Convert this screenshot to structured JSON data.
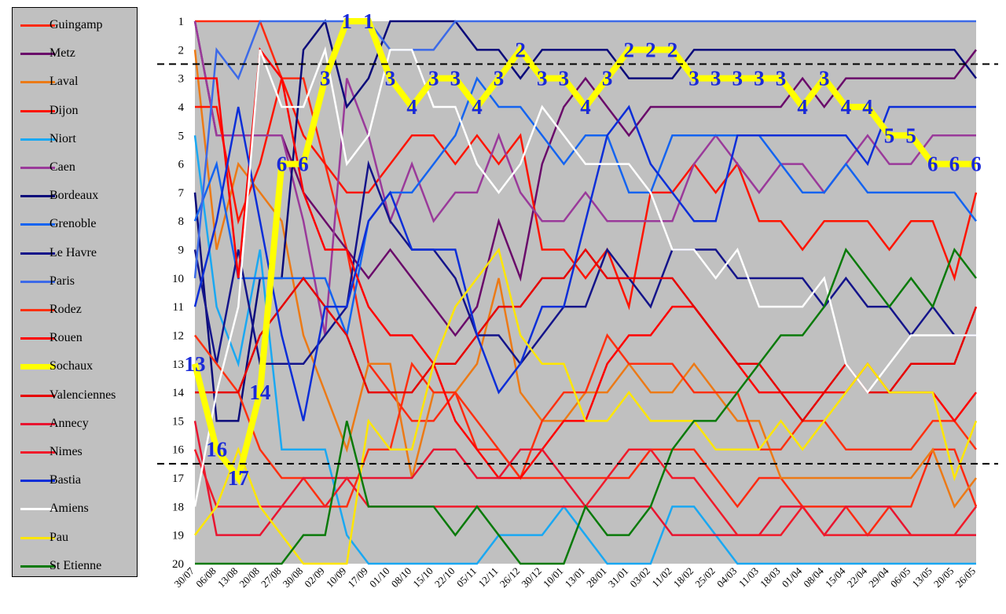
{
  "chart_data": {
    "type": "line",
    "title": "",
    "xlabel": "",
    "ylabel": "",
    "ylim": [
      20,
      1
    ],
    "y_inverted": true,
    "yticks": [
      1,
      2,
      3,
      4,
      5,
      6,
      7,
      8,
      9,
      10,
      11,
      12,
      13,
      14,
      15,
      16,
      17,
      18,
      19,
      20
    ],
    "grid": false,
    "legend_position": "left",
    "background": "#c0c0c0",
    "x": [
      "30/07",
      "06/08",
      "13/08",
      "20/08",
      "27/08",
      "30/08",
      "02/09",
      "10/09",
      "17/09",
      "01/10",
      "08/10",
      "15/10",
      "22/10",
      "05/11",
      "12/11",
      "26/12",
      "30/12",
      "10/01",
      "13/01",
      "28/01",
      "31/01",
      "03/02",
      "11/02",
      "18/02",
      "25/02",
      "04/03",
      "11/03",
      "18/03",
      "01/04",
      "08/04",
      "15/04",
      "22/04",
      "29/04",
      "06/05",
      "13/05",
      "20/05",
      "26/05"
    ],
    "reference_lines": [
      2.5,
      16.5
    ],
    "series": [
      {
        "name": "Guingamp",
        "color": "#ff2a10",
        "width": 2.5,
        "values": [
          1,
          1,
          1,
          1,
          3,
          3,
          6,
          9,
          13,
          14,
          15,
          15,
          14,
          16,
          16,
          17,
          17,
          17,
          17,
          17,
          17,
          16,
          16,
          16,
          17,
          18,
          17,
          17,
          18,
          18,
          18,
          19,
          18,
          18,
          16,
          16,
          18
        ]
      },
      {
        "name": "Metz",
        "color": "#6a0a6a",
        "width": 2.5,
        "values": [
          1,
          5,
          5,
          5,
          5,
          7,
          8,
          9,
          10,
          9,
          10,
          11,
          12,
          11,
          8,
          10,
          6,
          4,
          3,
          4,
          5,
          4,
          4,
          4,
          4,
          4,
          4,
          4,
          3,
          4,
          3,
          3,
          3,
          3,
          3,
          3,
          2
        ]
      },
      {
        "name": "Laval",
        "color": "#ec7a16",
        "width": 2.5,
        "values": [
          2,
          9,
          6,
          7,
          8,
          12,
          14,
          16,
          13,
          13,
          17,
          14,
          14,
          13,
          10,
          14,
          15,
          15,
          14,
          14,
          13,
          14,
          14,
          13,
          14,
          15,
          15,
          17,
          17,
          17,
          17,
          17,
          17,
          17,
          16,
          18,
          17
        ]
      },
      {
        "name": "Dijon",
        "color": "#ff1400",
        "width": 2.5,
        "values": [
          4,
          4,
          8,
          6,
          3,
          5,
          6,
          7,
          7,
          6,
          5,
          5,
          6,
          5,
          6,
          5,
          9,
          9,
          10,
          9,
          11,
          7,
          7,
          6,
          7,
          6,
          8,
          8,
          9,
          8,
          8,
          8,
          9,
          8,
          8,
          10,
          7
        ]
      },
      {
        "name": "Niort",
        "color": "#1aa8f2",
        "width": 2.5,
        "values": [
          5,
          11,
          13,
          9,
          16,
          16,
          16,
          19,
          20,
          20,
          20,
          20,
          20,
          20,
          19,
          19,
          19,
          18,
          19,
          20,
          20,
          20,
          18,
          18,
          19,
          20,
          20,
          20,
          20,
          20,
          20,
          20,
          20,
          20,
          20,
          20,
          20
        ]
      },
      {
        "name": "Caen",
        "color": "#9a3a9a",
        "width": 2.5,
        "values": [
          1,
          5,
          5,
          5,
          5,
          8,
          12,
          3,
          5,
          8,
          6,
          8,
          7,
          7,
          5,
          7,
          8,
          8,
          7,
          8,
          8,
          8,
          8,
          6,
          5,
          6,
          7,
          6,
          6,
          7,
          6,
          5,
          6,
          6,
          5,
          5,
          5
        ]
      },
      {
        "name": "Bordeaux",
        "color": "#0a0a7a",
        "width": 2.5,
        "values": [
          7,
          15,
          15,
          10,
          10,
          2,
          1,
          4,
          3,
          1,
          1,
          1,
          1,
          2,
          2,
          3,
          2,
          2,
          2,
          2,
          3,
          3,
          3,
          2,
          2,
          2,
          2,
          2,
          2,
          2,
          2,
          2,
          2,
          2,
          2,
          2,
          3
        ]
      },
      {
        "name": "Grenoble",
        "color": "#1464f0",
        "width": 2.5,
        "values": [
          8,
          6,
          10,
          10,
          10,
          10,
          10,
          12,
          8,
          7,
          7,
          6,
          5,
          3,
          4,
          4,
          5,
          6,
          5,
          5,
          7,
          7,
          5,
          5,
          5,
          5,
          5,
          6,
          7,
          7,
          6,
          7,
          7,
          7,
          7,
          7,
          8
        ]
      },
      {
        "name": "Le Havre",
        "color": "#14148a",
        "width": 2.5,
        "values": [
          9,
          13,
          9,
          13,
          13,
          13,
          12,
          11,
          6,
          8,
          9,
          9,
          10,
          12,
          12,
          13,
          12,
          11,
          11,
          9,
          10,
          11,
          9,
          9,
          9,
          10,
          10,
          10,
          10,
          11,
          10,
          11,
          11,
          12,
          11,
          12,
          12
        ]
      },
      {
        "name": "Paris",
        "color": "#3c6ae8",
        "width": 2.5,
        "values": [
          10,
          2,
          3,
          1,
          1,
          1,
          1,
          1,
          1,
          2,
          2,
          2,
          1,
          1,
          1,
          1,
          1,
          1,
          1,
          1,
          1,
          1,
          1,
          1,
          1,
          1,
          1,
          1,
          1,
          1,
          1,
          1,
          1,
          1,
          1,
          1,
          1
        ]
      },
      {
        "name": "Rodez",
        "color": "#ff3010",
        "width": 2.5,
        "values": [
          12,
          13,
          14,
          16,
          17,
          17,
          18,
          18,
          16,
          16,
          13,
          14,
          14,
          15,
          16,
          17,
          15,
          14,
          14,
          12,
          13,
          13,
          13,
          14,
          14,
          14,
          16,
          16,
          15,
          15,
          16,
          16,
          16,
          16,
          15,
          15,
          16
        ]
      },
      {
        "name": "Rouen",
        "color": "#ff0000",
        "width": 2.5,
        "values": [
          3,
          3,
          10,
          2,
          3,
          7,
          9,
          9,
          11,
          12,
          12,
          13,
          15,
          16,
          17,
          17,
          16,
          15,
          15,
          13,
          12,
          12,
          11,
          11,
          12,
          13,
          14,
          14,
          14,
          14,
          14,
          13,
          14,
          14,
          14,
          15,
          14
        ]
      },
      {
        "name": "Sochaux",
        "color": "#ffff00",
        "width": 8,
        "values": [
          13,
          16,
          17,
          14,
          6,
          6,
          3,
          1,
          1,
          3,
          4,
          3,
          3,
          4,
          3,
          2,
          3,
          3,
          4,
          3,
          2,
          2,
          2,
          3,
          3,
          3,
          3,
          3,
          4,
          3,
          4,
          4,
          5,
          5,
          6,
          6,
          6
        ]
      },
      {
        "name": "Valenciennes",
        "color": "#e60000",
        "width": 2.5,
        "values": [
          14,
          14,
          14,
          12,
          11,
          10,
          11,
          12,
          14,
          14,
          14,
          13,
          13,
          12,
          11,
          11,
          10,
          10,
          9,
          10,
          10,
          10,
          10,
          11,
          12,
          13,
          13,
          14,
          15,
          14,
          13,
          14,
          14,
          13,
          13,
          13,
          11
        ]
      },
      {
        "name": "Annecy",
        "color": "#e81430",
        "width": 2.5,
        "values": [
          15,
          19,
          19,
          19,
          18,
          17,
          17,
          17,
          17,
          17,
          17,
          16,
          16,
          17,
          17,
          16,
          16,
          17,
          18,
          18,
          18,
          18,
          19,
          19,
          19,
          19,
          19,
          18,
          18,
          19,
          18,
          18,
          18,
          19,
          19,
          19,
          19
        ]
      },
      {
        "name": "Nimes",
        "color": "#f01a2a",
        "width": 2.5,
        "values": [
          16,
          18,
          18,
          18,
          18,
          18,
          18,
          17,
          18,
          18,
          18,
          18,
          18,
          18,
          18,
          18,
          18,
          18,
          18,
          17,
          16,
          16,
          17,
          17,
          18,
          19,
          19,
          19,
          18,
          19,
          19,
          19,
          19,
          19,
          19,
          19,
          18
        ]
      },
      {
        "name": "Bastia",
        "color": "#0c2ed8",
        "width": 2.5,
        "values": [
          11,
          8,
          4,
          8,
          12,
          15,
          11,
          11,
          8,
          7,
          9,
          9,
          9,
          12,
          14,
          13,
          11,
          11,
          8,
          5,
          4,
          6,
          7,
          8,
          8,
          5,
          5,
          5,
          5,
          5,
          5,
          6,
          4,
          4,
          4,
          4,
          4
        ]
      },
      {
        "name": "Amiens",
        "color": "#ffffff",
        "width": 2.5,
        "values": [
          18,
          14,
          11,
          2,
          4,
          4,
          2,
          6,
          5,
          2,
          2,
          4,
          4,
          6,
          7,
          6,
          4,
          5,
          6,
          6,
          6,
          7,
          9,
          9,
          10,
          9,
          11,
          11,
          11,
          10,
          13,
          14,
          13,
          12,
          12,
          12,
          12
        ]
      },
      {
        "name": "Pau",
        "color": "#ffe600",
        "width": 2.5,
        "values": [
          19,
          18,
          16,
          18,
          19,
          20,
          20,
          20,
          15,
          16,
          16,
          13,
          11,
          10,
          9,
          12,
          13,
          13,
          15,
          15,
          14,
          15,
          15,
          15,
          16,
          16,
          16,
          15,
          16,
          15,
          14,
          13,
          14,
          14,
          14,
          17,
          15
        ]
      },
      {
        "name": "St Etienne",
        "color": "#0a7a0a",
        "width": 2.5,
        "values": [
          20,
          20,
          20,
          20,
          20,
          19,
          19,
          15,
          18,
          18,
          18,
          18,
          19,
          18,
          19,
          20,
          20,
          20,
          18,
          19,
          19,
          18,
          16,
          15,
          15,
          14,
          13,
          12,
          12,
          11,
          9,
          10,
          11,
          10,
          11,
          9,
          10
        ]
      }
    ],
    "annotations": [
      {
        "text": "13",
        "x": "30/07",
        "y": 13
      },
      {
        "text": "16",
        "x": "06/08",
        "y": 16
      },
      {
        "text": "17",
        "x": "13/08",
        "y": 17
      },
      {
        "text": "14",
        "x": "20/08",
        "y": 14
      },
      {
        "text": "6",
        "x": "27/08",
        "y": 6
      },
      {
        "text": "6",
        "x": "30/08",
        "y": 6
      },
      {
        "text": "3",
        "x": "02/09",
        "y": 3
      },
      {
        "text": "1",
        "x": "10/09",
        "y": 1
      },
      {
        "text": "1",
        "x": "17/09",
        "y": 1
      },
      {
        "text": "3",
        "x": "01/10",
        "y": 3
      },
      {
        "text": "4",
        "x": "08/10",
        "y": 4
      },
      {
        "text": "3",
        "x": "15/10",
        "y": 3
      },
      {
        "text": "3",
        "x": "22/10",
        "y": 3
      },
      {
        "text": "4",
        "x": "05/11",
        "y": 4
      },
      {
        "text": "3",
        "x": "12/11",
        "y": 3
      },
      {
        "text": "2",
        "x": "26/12",
        "y": 2
      },
      {
        "text": "3",
        "x": "30/12",
        "y": 3
      },
      {
        "text": "3",
        "x": "10/01",
        "y": 3
      },
      {
        "text": "4",
        "x": "13/01",
        "y": 4
      },
      {
        "text": "3",
        "x": "28/01",
        "y": 3
      },
      {
        "text": "2",
        "x": "31/01",
        "y": 2
      },
      {
        "text": "2",
        "x": "03/02",
        "y": 2
      },
      {
        "text": "2",
        "x": "11/02",
        "y": 2
      },
      {
        "text": "3",
        "x": "18/02",
        "y": 3
      },
      {
        "text": "3",
        "x": "25/02",
        "y": 3
      },
      {
        "text": "3",
        "x": "04/03",
        "y": 3
      },
      {
        "text": "3",
        "x": "11/03",
        "y": 3
      },
      {
        "text": "3",
        "x": "18/03",
        "y": 3
      },
      {
        "text": "4",
        "x": "01/04",
        "y": 4
      },
      {
        "text": "3",
        "x": "08/04",
        "y": 3
      },
      {
        "text": "4",
        "x": "15/04",
        "y": 4
      },
      {
        "text": "4",
        "x": "22/04",
        "y": 4
      },
      {
        "text": "5",
        "x": "29/04",
        "y": 5
      },
      {
        "text": "5",
        "x": "06/05",
        "y": 5
      },
      {
        "text": "6",
        "x": "13/05",
        "y": 6
      },
      {
        "text": "6",
        "x": "20/05",
        "y": 6
      },
      {
        "text": "6",
        "x": "26/05",
        "y": 6
      }
    ]
  }
}
